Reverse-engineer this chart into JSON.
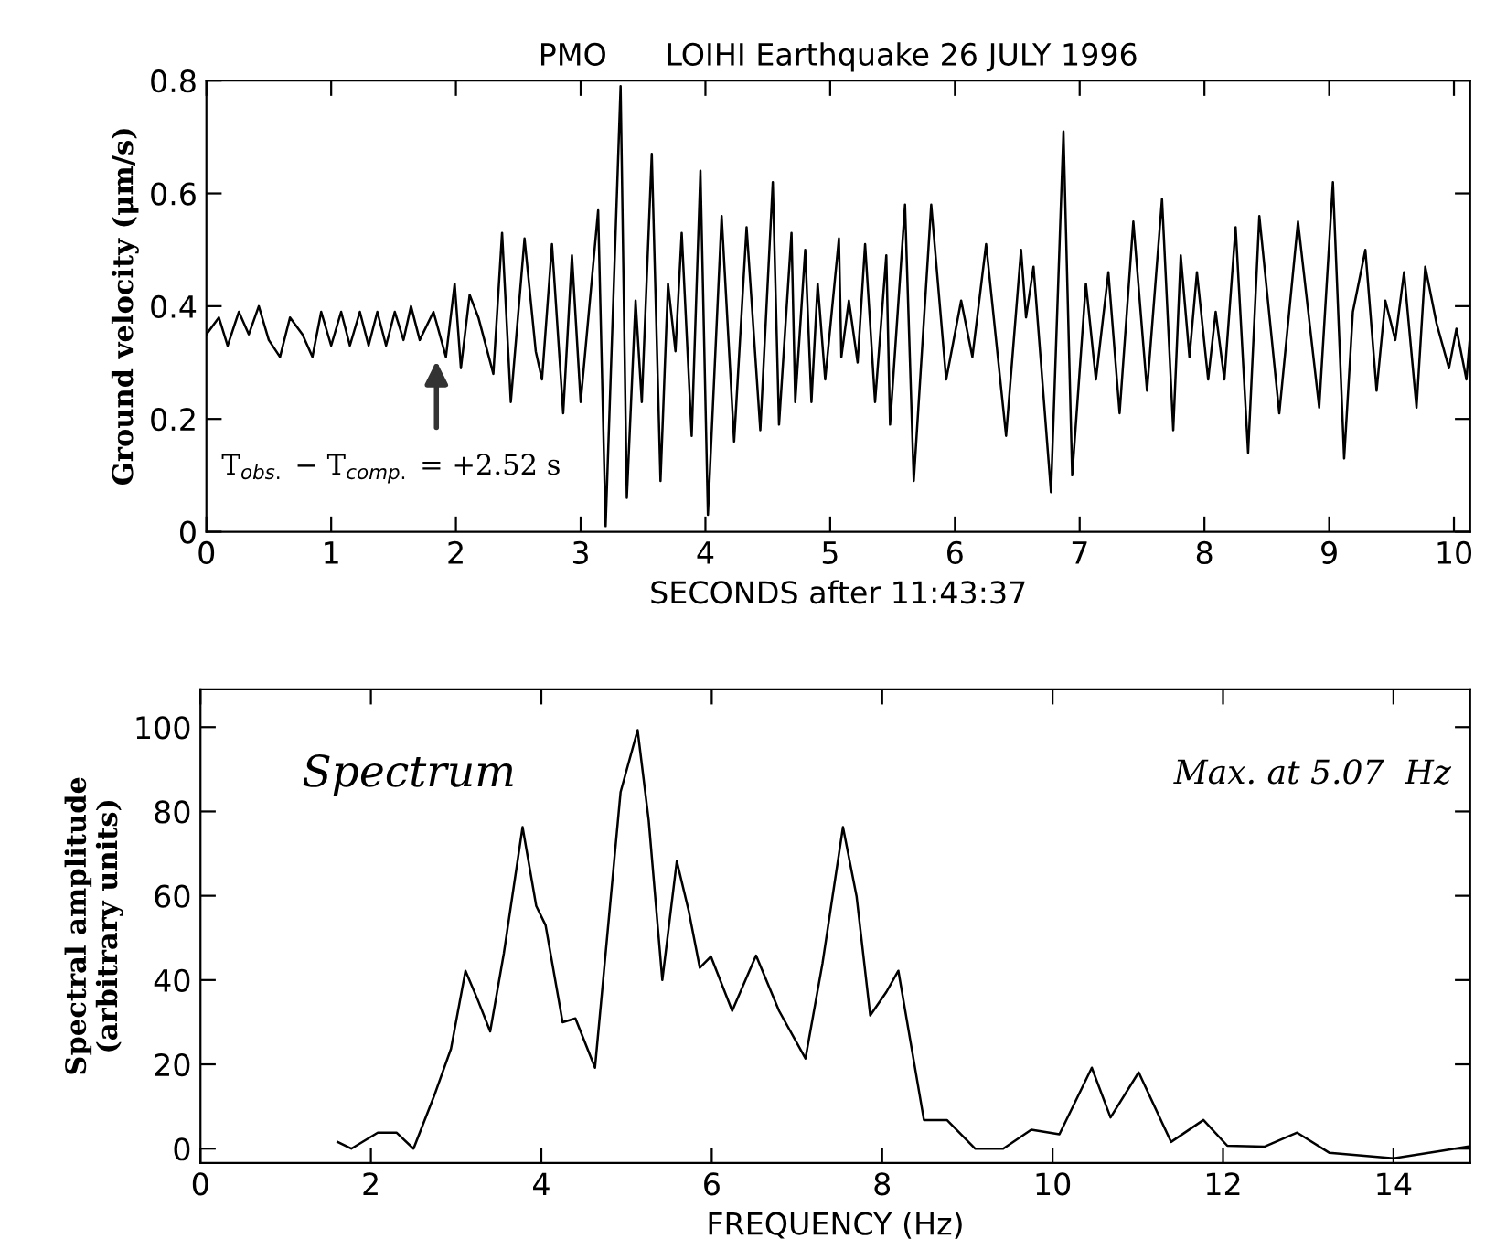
{
  "chart_data": [
    {
      "type": "line",
      "title": "PMO      LOIHI Earthquake 26 JULY 1996",
      "xlabel": "SECONDS after 11:43:37",
      "ylabel": "Ground velocity (μm/s)",
      "color": "#000000",
      "grid": false,
      "xlim": [
        0,
        10.13
      ],
      "ylim": [
        0,
        0.8
      ],
      "xticks": [
        0,
        1,
        2,
        3,
        4,
        5,
        6,
        7,
        8,
        9,
        10
      ],
      "yticks": [
        0,
        0.2,
        0.4,
        0.6,
        0.8
      ],
      "x": [
        0.0,
        0.1,
        0.17,
        0.26,
        0.34,
        0.42,
        0.5,
        0.59,
        0.67,
        0.77,
        0.85,
        0.92,
        1.0,
        1.08,
        1.15,
        1.23,
        1.3,
        1.37,
        1.44,
        1.51,
        1.58,
        1.64,
        1.71,
        1.82,
        1.92,
        1.99,
        2.04,
        2.11,
        2.18,
        2.3,
        2.37,
        2.44,
        2.55,
        2.64,
        2.69,
        2.77,
        2.86,
        2.93,
        3.0,
        3.14,
        3.2,
        3.32,
        3.37,
        3.44,
        3.49,
        3.57,
        3.64,
        3.7,
        3.76,
        3.81,
        3.89,
        3.96,
        4.02,
        4.13,
        4.23,
        4.33,
        4.44,
        4.54,
        4.59,
        4.69,
        4.72,
        4.8,
        4.85,
        4.9,
        4.96,
        5.07,
        5.09,
        5.15,
        5.22,
        5.28,
        5.36,
        5.45,
        5.48,
        5.6,
        5.67,
        5.81,
        5.93,
        6.05,
        6.14,
        6.25,
        6.41,
        6.53,
        6.57,
        6.63,
        6.77,
        6.87,
        6.94,
        7.05,
        7.13,
        7.23,
        7.32,
        7.43,
        7.54,
        7.66,
        7.75,
        7.81,
        7.88,
        7.94,
        8.03,
        8.09,
        8.16,
        8.25,
        8.35,
        8.44,
        8.6,
        8.75,
        8.92,
        9.03,
        9.12,
        9.19,
        9.29,
        9.38,
        9.45,
        9.53,
        9.6,
        9.7,
        9.77,
        9.86,
        9.96,
        10.02,
        10.1,
        10.13
      ],
      "values": [
        0.35,
        0.38,
        0.33,
        0.39,
        0.35,
        0.4,
        0.34,
        0.31,
        0.38,
        0.35,
        0.31,
        0.39,
        0.33,
        0.39,
        0.33,
        0.39,
        0.33,
        0.39,
        0.33,
        0.39,
        0.34,
        0.4,
        0.34,
        0.39,
        0.31,
        0.44,
        0.29,
        0.42,
        0.38,
        0.28,
        0.53,
        0.23,
        0.52,
        0.32,
        0.27,
        0.51,
        0.21,
        0.49,
        0.23,
        0.57,
        0.01,
        0.79,
        0.06,
        0.41,
        0.23,
        0.67,
        0.09,
        0.44,
        0.32,
        0.53,
        0.17,
        0.64,
        0.03,
        0.56,
        0.16,
        0.54,
        0.18,
        0.62,
        0.19,
        0.53,
        0.23,
        0.5,
        0.23,
        0.44,
        0.27,
        0.52,
        0.31,
        0.41,
        0.3,
        0.51,
        0.23,
        0.49,
        0.19,
        0.58,
        0.09,
        0.58,
        0.27,
        0.41,
        0.31,
        0.51,
        0.17,
        0.5,
        0.38,
        0.47,
        0.07,
        0.71,
        0.1,
        0.44,
        0.27,
        0.46,
        0.21,
        0.55,
        0.25,
        0.59,
        0.18,
        0.49,
        0.31,
        0.46,
        0.27,
        0.39,
        0.27,
        0.54,
        0.14,
        0.56,
        0.21,
        0.55,
        0.22,
        0.62,
        0.13,
        0.39,
        0.5,
        0.25,
        0.41,
        0.34,
        0.46,
        0.22,
        0.47,
        0.37,
        0.29,
        0.36,
        0.27,
        0.35
      ],
      "annotations": [
        "T$_{obs.}$ − T$_{comp.}$ = +2.52 s"
      ]
    },
    {
      "type": "line",
      "xlabel": "FREQUENCY (Hz)",
      "ylabel": "Spectral amplitude\n(arbitrary units)",
      "color": "#000000",
      "grid": false,
      "xlim": [
        0,
        14.9
      ],
      "ylim": [
        -3.4,
        109
      ],
      "xticks": [
        0,
        2,
        4,
        6,
        8,
        10,
        12,
        14
      ],
      "yticks": [
        0,
        20,
        40,
        60,
        80,
        100
      ],
      "x": [
        1.61,
        1.77,
        2.08,
        2.3,
        2.5,
        2.74,
        2.94,
        3.11,
        3.26,
        3.4,
        3.56,
        3.78,
        3.94,
        4.05,
        4.25,
        4.4,
        4.63,
        4.93,
        5.13,
        5.26,
        5.42,
        5.59,
        5.73,
        5.86,
        5.99,
        6.24,
        6.52,
        6.79,
        7.1,
        7.3,
        7.54,
        7.7,
        7.86,
        8.05,
        8.19,
        8.49,
        8.76,
        9.09,
        9.42,
        9.75,
        10.08,
        10.46,
        10.68,
        11.01,
        11.39,
        11.77,
        12.05,
        12.49,
        12.87,
        13.25,
        14.0,
        14.57,
        14.87
      ],
      "values": [
        1.6,
        0,
        3.8,
        3.8,
        0,
        12.4,
        23.7,
        42.2,
        35.0,
        27.8,
        46.3,
        76.3,
        57.6,
        53.0,
        30.0,
        30.9,
        19.2,
        84.6,
        99.3,
        77.9,
        40.0,
        68.2,
        56.4,
        42.9,
        45.6,
        32.7,
        45.8,
        32.7,
        21.4,
        44.0,
        76.3,
        59.8,
        31.6,
        37.2,
        42.2,
        6.8,
        6.8,
        0,
        0,
        4.5,
        3.4,
        19.2,
        7.4,
        18.1,
        1.6,
        6.8,
        0.7,
        0.5,
        3.8,
        -1,
        -2.3,
        -0.5,
        0.5
      ],
      "annotations": [
        "Spectrum",
        "Max. at 5.07  Hz"
      ]
    }
  ]
}
